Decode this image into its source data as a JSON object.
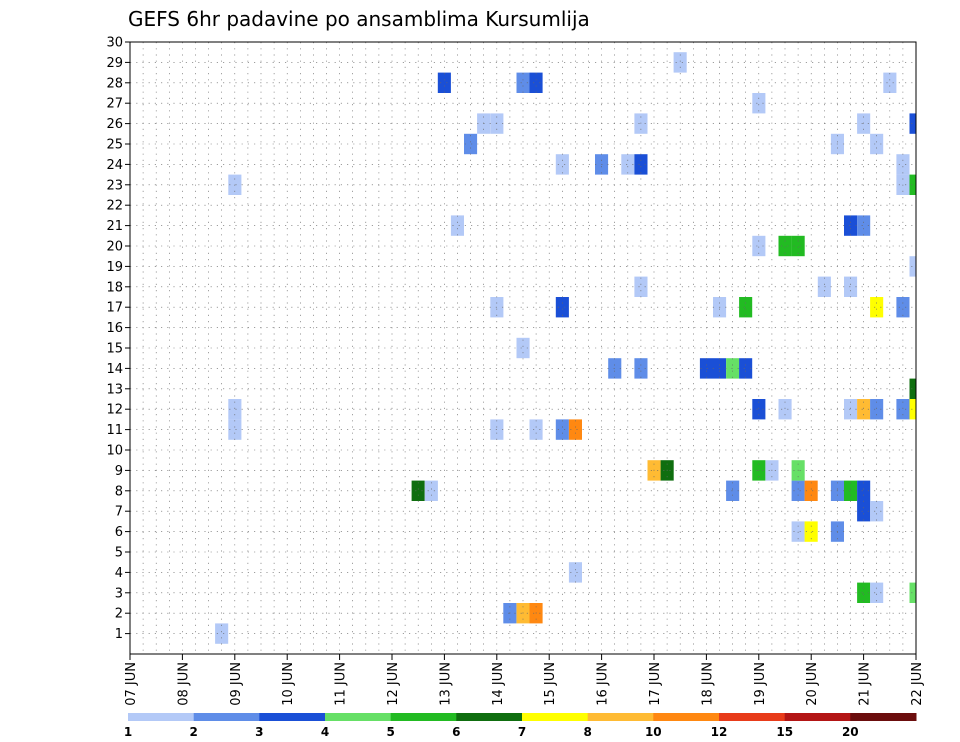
{
  "chart_data": {
    "type": "heatmap",
    "title": "GEFS 6hr padavine po ansamblima Kursumlija",
    "xlabel": "",
    "ylabel": "",
    "x_tick_labels": [
      "07 JUN",
      "08 JUN",
      "09 JUN",
      "10 JUN",
      "11 JUN",
      "12 JUN",
      "13 JUN",
      "14 JUN",
      "15 JUN",
      "16 JUN",
      "17 JUN",
      "18 JUN",
      "19 JUN",
      "20 JUN",
      "21 JUN",
      "22 JUN"
    ],
    "x_range_days": [
      0,
      15
    ],
    "y_tick_labels": [
      "1",
      "2",
      "3",
      "4",
      "5",
      "6",
      "7",
      "8",
      "9",
      "10",
      "11",
      "12",
      "13",
      "14",
      "15",
      "16",
      "17",
      "18",
      "19",
      "20",
      "21",
      "22",
      "23",
      "24",
      "25",
      "26",
      "27",
      "28",
      "29",
      "30"
    ],
    "y_range": [
      0,
      30
    ],
    "grid": true,
    "colorbar": {
      "labels": [
        "1",
        "2",
        "3",
        "4",
        "5",
        "6",
        "7",
        "8",
        "10",
        "12",
        "15",
        "20"
      ],
      "colors": [
        "#b3c9f7",
        "#5f8de8",
        "#1a4fd6",
        "#66e066",
        "#22bb22",
        "#0f6e0f",
        "#ffff00",
        "#ffbb33",
        "#ff8811",
        "#e83b1a",
        "#b31515",
        "#6b0d0d"
      ]
    },
    "cells": [
      {
        "m": 1,
        "d": 1.75,
        "v": 1
      },
      {
        "m": 2,
        "d": 7.25,
        "v": 2
      },
      {
        "m": 2,
        "d": 7.5,
        "v": 8
      },
      {
        "m": 2,
        "d": 7.75,
        "v": 10
      },
      {
        "m": 3,
        "d": 14.0,
        "v": 5
      },
      {
        "m": 3,
        "d": 14.25,
        "v": 1
      },
      {
        "m": 3,
        "d": 15.0,
        "v": 4
      },
      {
        "m": 4,
        "d": 8.5,
        "v": 1
      },
      {
        "m": 6,
        "d": 12.75,
        "v": 1
      },
      {
        "m": 6,
        "d": 13.0,
        "v": 7
      },
      {
        "m": 6,
        "d": 13.5,
        "v": 2
      },
      {
        "m": 7,
        "d": 14.0,
        "v": 3
      },
      {
        "m": 7,
        "d": 14.25,
        "v": 1
      },
      {
        "m": 8,
        "d": 5.5,
        "v": 6
      },
      {
        "m": 8,
        "d": 5.75,
        "v": 1
      },
      {
        "m": 8,
        "d": 11.5,
        "v": 2
      },
      {
        "m": 8,
        "d": 12.75,
        "v": 2
      },
      {
        "m": 8,
        "d": 13.0,
        "v": 10
      },
      {
        "m": 8,
        "d": 13.5,
        "v": 2
      },
      {
        "m": 8,
        "d": 13.75,
        "v": 5
      },
      {
        "m": 8,
        "d": 14.0,
        "v": 3
      },
      {
        "m": 9,
        "d": 10.0,
        "v": 8
      },
      {
        "m": 9,
        "d": 10.25,
        "v": 6
      },
      {
        "m": 9,
        "d": 12.0,
        "v": 5
      },
      {
        "m": 9,
        "d": 12.25,
        "v": 1
      },
      {
        "m": 9,
        "d": 12.75,
        "v": 4
      },
      {
        "m": 11,
        "d": 2.0,
        "v": 1
      },
      {
        "m": 11,
        "d": 7.0,
        "v": 1
      },
      {
        "m": 11,
        "d": 7.75,
        "v": 1
      },
      {
        "m": 11,
        "d": 8.25,
        "v": 2
      },
      {
        "m": 11,
        "d": 8.5,
        "v": 10
      },
      {
        "m": 12,
        "d": 2.0,
        "v": 1
      },
      {
        "m": 12,
        "d": 12.0,
        "v": 3
      },
      {
        "m": 12,
        "d": 12.5,
        "v": 1
      },
      {
        "m": 12,
        "d": 13.75,
        "v": 1
      },
      {
        "m": 12,
        "d": 14.0,
        "v": 8
      },
      {
        "m": 12,
        "d": 14.25,
        "v": 2
      },
      {
        "m": 12,
        "d": 14.75,
        "v": 2
      },
      {
        "m": 12,
        "d": 15.0,
        "v": 7
      },
      {
        "m": 13,
        "d": 15.0,
        "v": 6
      },
      {
        "m": 14,
        "d": 9.25,
        "v": 2
      },
      {
        "m": 14,
        "d": 9.75,
        "v": 2
      },
      {
        "m": 14,
        "d": 11.0,
        "v": 3
      },
      {
        "m": 14,
        "d": 11.25,
        "v": 3
      },
      {
        "m": 14,
        "d": 11.5,
        "v": 4
      },
      {
        "m": 14,
        "d": 11.75,
        "v": 3
      },
      {
        "m": 15,
        "d": 7.5,
        "v": 1
      },
      {
        "m": 17,
        "d": 7.0,
        "v": 1
      },
      {
        "m": 17,
        "d": 8.25,
        "v": 3
      },
      {
        "m": 17,
        "d": 11.25,
        "v": 1
      },
      {
        "m": 17,
        "d": 11.75,
        "v": 5
      },
      {
        "m": 17,
        "d": 14.25,
        "v": 7
      },
      {
        "m": 17,
        "d": 14.75,
        "v": 2
      },
      {
        "m": 18,
        "d": 9.75,
        "v": 1
      },
      {
        "m": 18,
        "d": 13.25,
        "v": 1
      },
      {
        "m": 18,
        "d": 13.75,
        "v": 1
      },
      {
        "m": 19,
        "d": 15.0,
        "v": 1
      },
      {
        "m": 20,
        "d": 12.0,
        "v": 1
      },
      {
        "m": 20,
        "d": 12.5,
        "v": 5
      },
      {
        "m": 20,
        "d": 12.75,
        "v": 5
      },
      {
        "m": 21,
        "d": 6.25,
        "v": 1
      },
      {
        "m": 21,
        "d": 13.75,
        "v": 3
      },
      {
        "m": 21,
        "d": 14.0,
        "v": 2
      },
      {
        "m": 23,
        "d": 2.0,
        "v": 1
      },
      {
        "m": 23,
        "d": 14.75,
        "v": 1
      },
      {
        "m": 23,
        "d": 15.0,
        "v": 5
      },
      {
        "m": 24,
        "d": 8.25,
        "v": 1
      },
      {
        "m": 24,
        "d": 9.0,
        "v": 2
      },
      {
        "m": 24,
        "d": 9.5,
        "v": 1
      },
      {
        "m": 24,
        "d": 9.75,
        "v": 3
      },
      {
        "m": 24,
        "d": 14.75,
        "v": 1
      },
      {
        "m": 25,
        "d": 6.5,
        "v": 2
      },
      {
        "m": 25,
        "d": 13.5,
        "v": 1
      },
      {
        "m": 25,
        "d": 14.25,
        "v": 1
      },
      {
        "m": 26,
        "d": 6.75,
        "v": 1
      },
      {
        "m": 26,
        "d": 7.0,
        "v": 1
      },
      {
        "m": 26,
        "d": 9.75,
        "v": 1
      },
      {
        "m": 26,
        "d": 14.0,
        "v": 1
      },
      {
        "m": 26,
        "d": 15.0,
        "v": 3
      },
      {
        "m": 27,
        "d": 12.0,
        "v": 1
      },
      {
        "m": 28,
        "d": 6.0,
        "v": 3
      },
      {
        "m": 28,
        "d": 7.5,
        "v": 2
      },
      {
        "m": 28,
        "d": 7.75,
        "v": 3
      },
      {
        "m": 28,
        "d": 14.5,
        "v": 1
      },
      {
        "m": 29,
        "d": 10.5,
        "v": 1
      }
    ]
  }
}
